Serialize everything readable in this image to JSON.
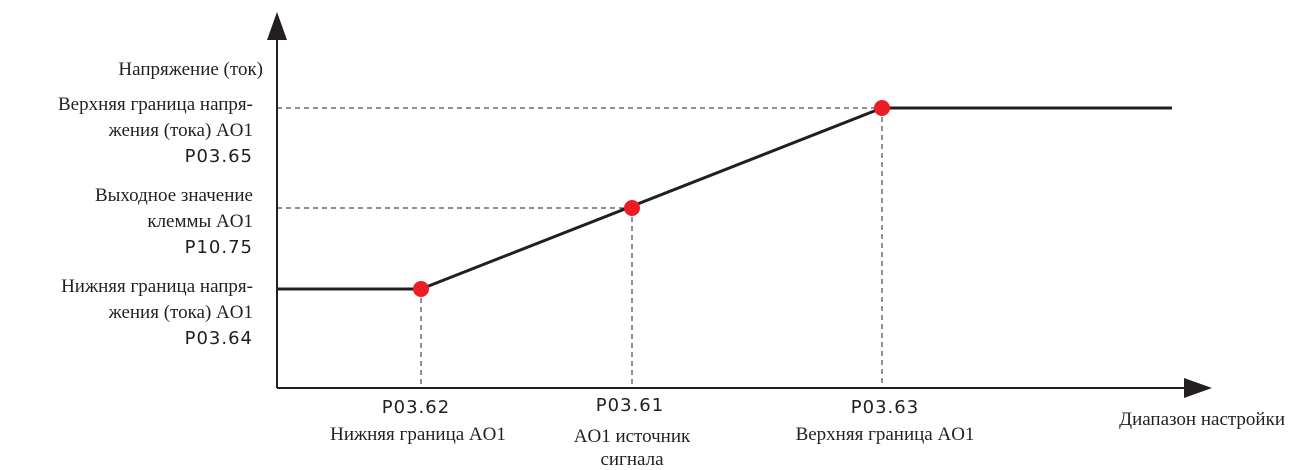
{
  "y_axis": {
    "title": "Напряжение (ток)",
    "upper": {
      "line1": "Верхняя граница напря-",
      "line2": "жения (тока) AO1",
      "code": "P03.65"
    },
    "output": {
      "line1": "Выходное значение",
      "line2": "клеммы AO1",
      "code": "P10.75"
    },
    "lower": {
      "line1": "Нижняя граница напря-",
      "line2": "жения (тока) AO1",
      "code": "P03.64"
    }
  },
  "x_axis": {
    "title": "Диапазон настройки",
    "lower": {
      "code": "P03.62",
      "line1": "Нижняя граница AO1"
    },
    "source": {
      "code": "P03.61",
      "line1": "AO1 источник",
      "line2": "сигнала"
    },
    "upper": {
      "code": "P03.63",
      "line1": "Верхняя граница AO1"
    }
  },
  "colors": {
    "line": "#231f20",
    "point": "#ed1c24",
    "dash": "#231f20"
  }
}
